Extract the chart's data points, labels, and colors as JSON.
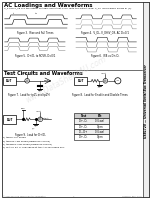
{
  "sidebar_text": "USB1T20 — Universal Serial Bus Transceiver",
  "section1_title": "AC Loadings and Waveforms",
  "section1_subtitle": "V_S and V_LB are the output voltage levels that occur with the output load. V_CC levels given below in (V).",
  "section2_title": "Test Circuits and Waveforms",
  "fig3_caption": "Figure 3.  Rise and Fall Times",
  "fig4_caption": "Figure 4.  V_OL, V_OH/V_OX, AC D=0/1",
  "fig5_caption": "Figure 5.  D+/D- to RCVR, D=0/1",
  "fig6_caption": "Figure 6.  ISB vs D+/D-",
  "fig7_caption": "Figure 7.  Load for tpZL and tpZH",
  "fig8_caption": "Figure 8.  Load for Enable and Disable Times",
  "fig9_caption": "Figure 9.  Load for D+/D-",
  "table_header": [
    "Test",
    "Bit"
  ],
  "table_rows": [
    [
      "D+, D-",
      "0 (Low)"
    ],
    [
      "D+, D-",
      "Open"
    ],
    [
      "D-, D+",
      "0 (Low)"
    ],
    [
      "D+, D-",
      "Open"
    ]
  ],
  "footnotes": [
    "1) tpZLH: Full Speed",
    "2) tpZHxF: Low Speed (Reference Timing)",
    "3) tpENDx3: Low Speed (Reference Timing)",
    "4) Test on D+ or Low Speed at the A or Full Speed only"
  ],
  "bg_color": "#ffffff",
  "border_color": "#000000",
  "text_color": "#000000",
  "watermark": "www.DataSheet4U.com",
  "page_number": "7",
  "footer_left": "© 2002 Fairchild Semiconductor Corporation",
  "footer_right": "USB1T20  Rev. 1.0.2"
}
